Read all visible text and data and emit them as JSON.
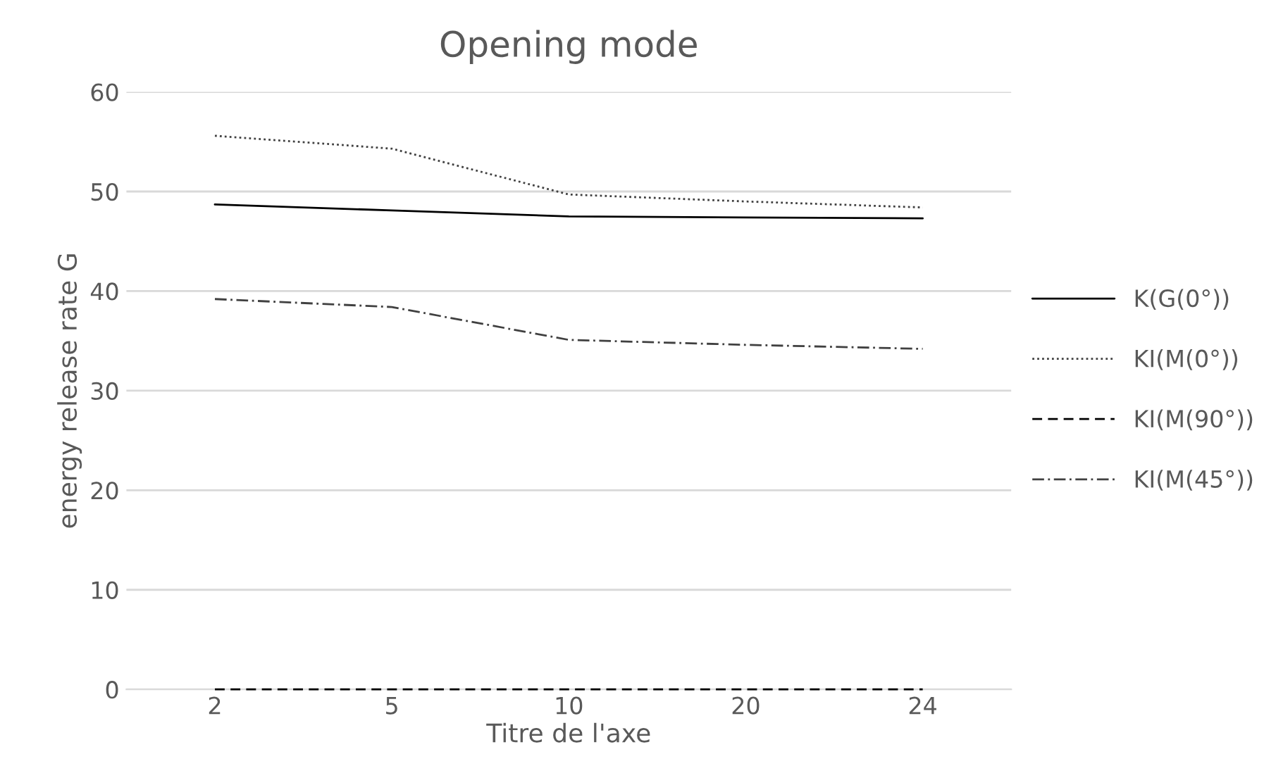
{
  "chart_data": {
    "type": "line",
    "title": "Opening mode",
    "xlabel": "Titre de l'axe",
    "ylabel": "energy release rate G",
    "categories": [
      "2",
      "5",
      "10",
      "20",
      "24"
    ],
    "series": [
      {
        "name": "K(G(0°))",
        "color": "#000000",
        "line_style": "solid",
        "values": [
          48.7,
          48.1,
          47.5,
          47.4,
          47.3
        ]
      },
      {
        "name": "KI(M(0°))",
        "color": "#404040",
        "line_style": "dotted",
        "values": [
          55.6,
          54.3,
          49.7,
          49.0,
          48.4
        ]
      },
      {
        "name": "KI(M(90°))",
        "color": "#000000",
        "line_style": "dashed",
        "values": [
          0,
          0,
          0,
          0,
          0
        ]
      },
      {
        "name": "KI(M(45°))",
        "color": "#404040",
        "line_style": "dashdot",
        "values": [
          39.2,
          38.4,
          35.1,
          34.6,
          34.2
        ]
      }
    ],
    "ylim": [
      0,
      60
    ],
    "yticks": [
      0,
      10,
      20,
      30,
      40,
      50,
      60
    ],
    "grid": "y",
    "legend": "right",
    "marker": "none"
  }
}
